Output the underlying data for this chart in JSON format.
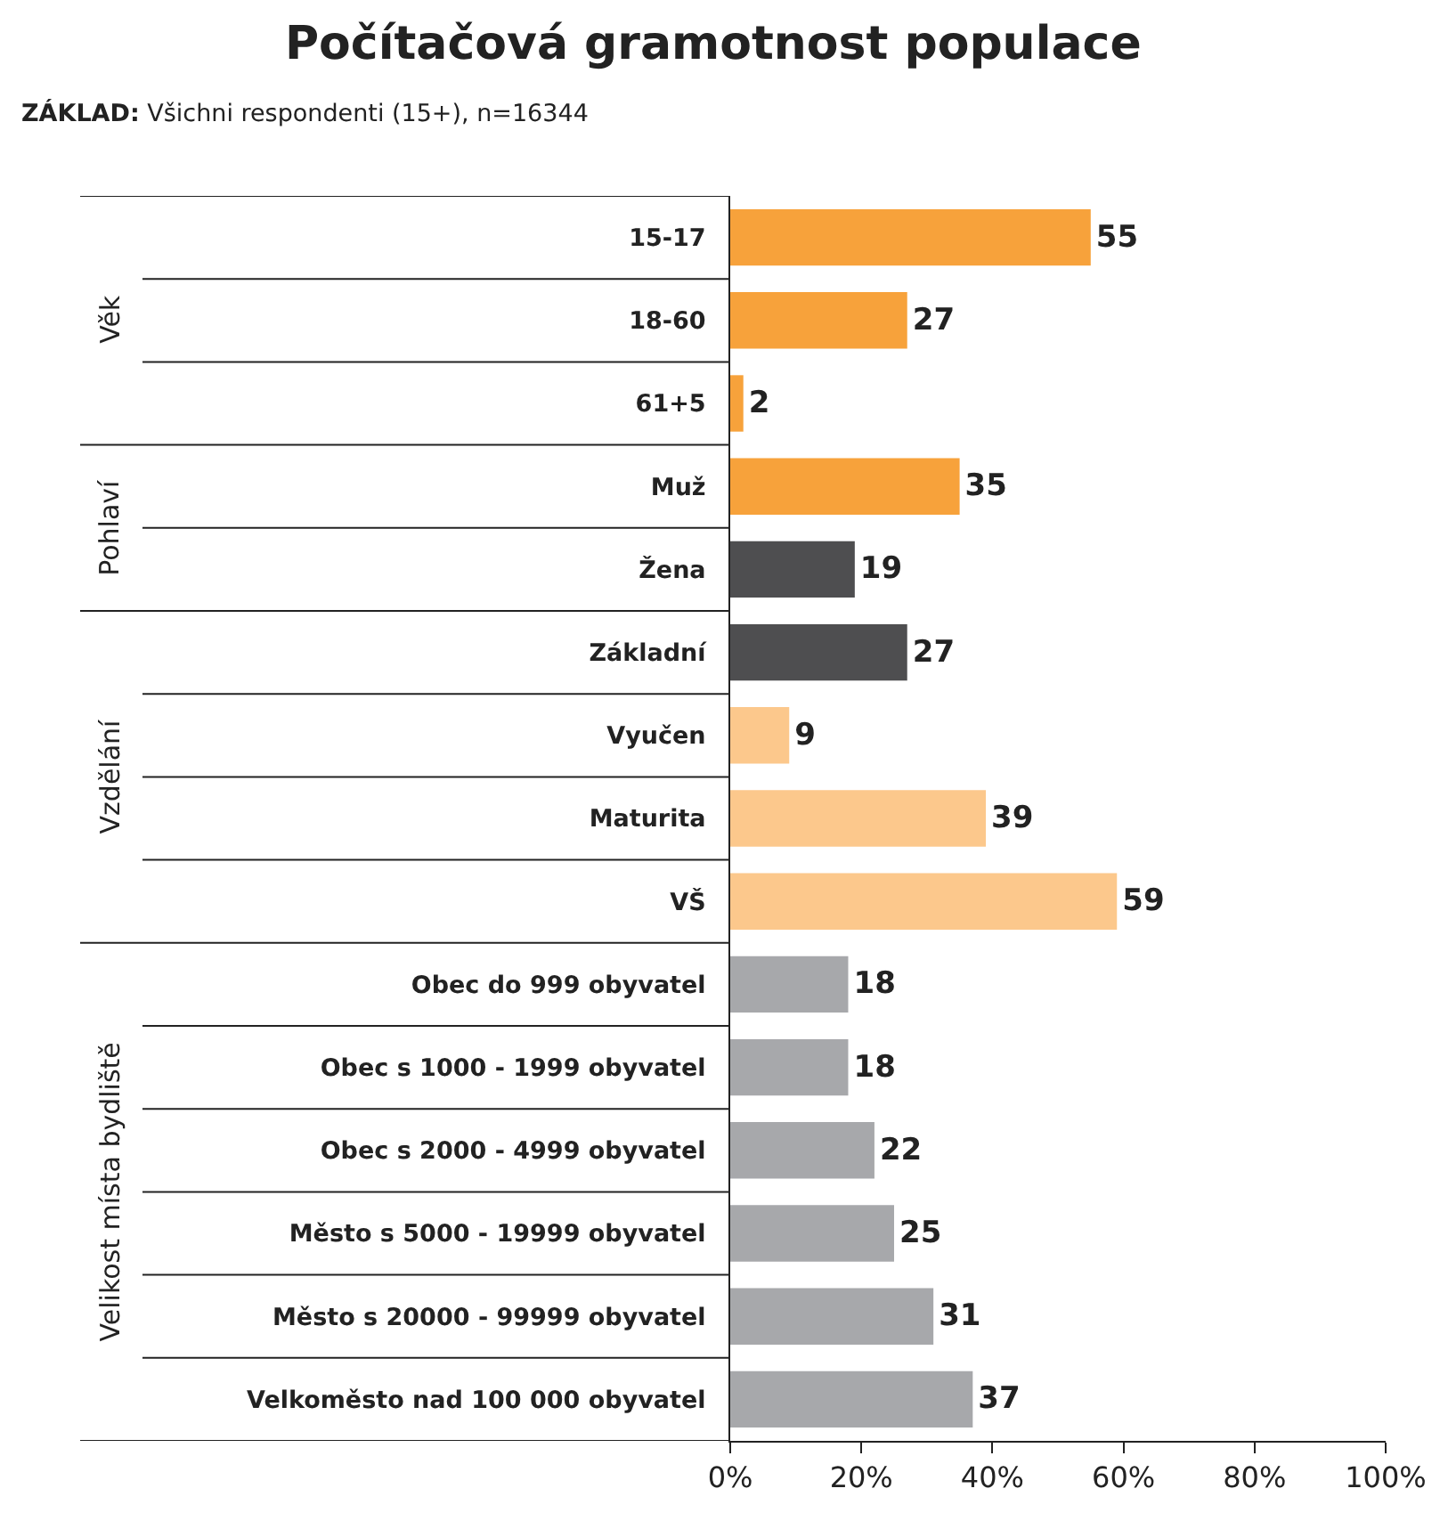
{
  "chart_data": {
    "type": "bar",
    "orientation": "horizontal",
    "title": "Počítačová gramotnost populace",
    "subtitle": "ZÁKLAD: Všichni respondenti (15+), n=16344",
    "categories": [
      "15-17",
      "18-60",
      "61+5",
      "Muž",
      "Žena",
      "Základní",
      "Vyučen",
      "Maturita",
      "VŠ",
      "Obec do 999 obyvatel",
      "Obec s 1000 - 1999 obyvatel",
      "Obec s 2000 - 4999 obyvatel",
      "Město s 5000 - 19999 obyvatel",
      "Město s 20000 - 99999 obyvatel",
      "Velkoměsto nad 100 000 obyvatel"
    ],
    "values": [
      55,
      27,
      2,
      35,
      19,
      27,
      9,
      39,
      59,
      18,
      18,
      22,
      25,
      31,
      37
    ],
    "colors": [
      "#f7a23b",
      "#f7a23b",
      "#f7a23b",
      "#f7a23b",
      "#4e4e50",
      "#4e4e50",
      "#fcc88c",
      "#fcc88c",
      "#fcc88c",
      "#a7a8ab",
      "#a7a8ab",
      "#a7a8ab",
      "#a7a8ab",
      "#a7a8ab",
      "#a7a8ab"
    ],
    "xlim": [
      0,
      100
    ],
    "xticks": [
      {
        "value": 0,
        "label": "0%"
      },
      {
        "value": 20,
        "label": "20%"
      },
      {
        "value": 40,
        "label": "40%"
      },
      {
        "value": 60,
        "label": "60%"
      },
      {
        "value": 80,
        "label": "80%"
      },
      {
        "value": 100,
        "label": "100%"
      }
    ],
    "data_labels": true,
    "annotations": [
      "Věk",
      "Pohlaví",
      "Vzdělání",
      "Velikost místa bydliště"
    ]
  }
}
